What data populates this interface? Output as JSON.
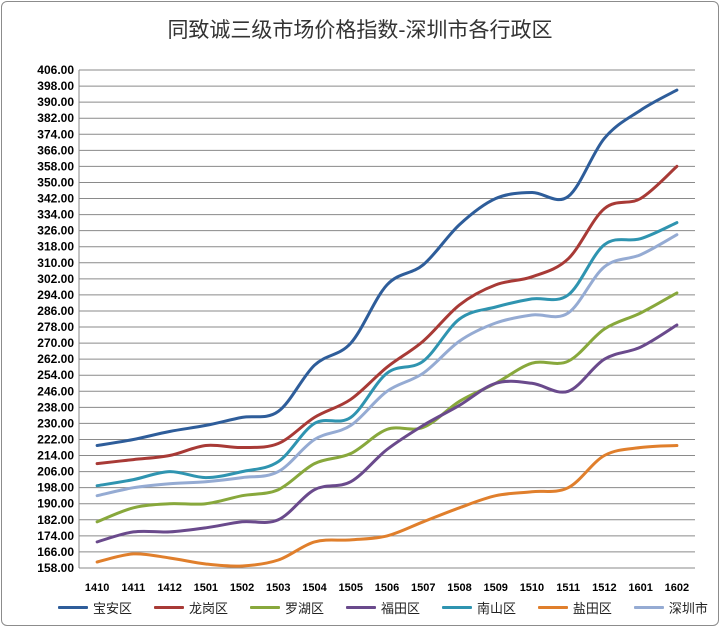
{
  "chart_data": {
    "type": "line",
    "title": "同致诚三级市场价格指数-深圳市各行政区",
    "xlabel": "",
    "ylabel": "",
    "ylim": [
      158.0,
      406.0
    ],
    "yticks": [
      "406.00",
      "398.00",
      "390.00",
      "382.00",
      "374.00",
      "366.00",
      "358.00",
      "350.00",
      "342.00",
      "334.00",
      "326.00",
      "318.00",
      "310.00",
      "302.00",
      "294.00",
      "286.00",
      "278.00",
      "270.00",
      "262.00",
      "254.00",
      "246.00",
      "238.00",
      "230.00",
      "222.00",
      "214.00",
      "206.00",
      "198.00",
      "190.00",
      "182.00",
      "174.00",
      "166.00",
      "158.00"
    ],
    "categories": [
      "1410",
      "1411",
      "1412",
      "1501",
      "1502",
      "1503",
      "1504",
      "1505",
      "1506",
      "1507",
      "1508",
      "1509",
      "1510",
      "1511",
      "1512",
      "1601",
      "1602"
    ],
    "grid": true,
    "legend_position": "bottom",
    "series": [
      {
        "name": "宝安区",
        "color": "#2e5d9a",
        "values": [
          219.0,
          222.0,
          226.0,
          229.0,
          233.0,
          236.0,
          259.0,
          270.0,
          299.0,
          309.0,
          329.0,
          342.0,
          345.0,
          343.0,
          372.0,
          386.0,
          396.0
        ]
      },
      {
        "name": "龙岗区",
        "color": "#a83a36",
        "values": [
          210.0,
          212.0,
          214.0,
          219.0,
          218.0,
          220.0,
          233.0,
          242.0,
          258.0,
          271.0,
          289.0,
          299.0,
          303.0,
          312.0,
          337.0,
          342.0,
          358.0
        ]
      },
      {
        "name": "罗湖区",
        "color": "#88a83c",
        "values": [
          181.0,
          188.0,
          190.0,
          190.0,
          194.0,
          197.0,
          210.0,
          215.0,
          227.0,
          228.0,
          241.0,
          250.0,
          260.0,
          261.0,
          277.0,
          285.0,
          295.0
        ]
      },
      {
        "name": "福田区",
        "color": "#6a4a8c",
        "values": [
          171.0,
          176.0,
          176.0,
          178.0,
          181.0,
          182.0,
          197.0,
          201.0,
          217.0,
          229.0,
          239.0,
          250.0,
          250.0,
          246.0,
          262.0,
          268.0,
          279.0
        ]
      },
      {
        "name": "南山区",
        "color": "#2f94b0",
        "values": [
          199.0,
          202.0,
          206.0,
          203.0,
          206.0,
          211.0,
          230.0,
          233.0,
          255.0,
          261.0,
          282.0,
          288.0,
          292.0,
          294.0,
          319.0,
          322.0,
          330.0
        ]
      },
      {
        "name": "盐田区",
        "color": "#e07f2c",
        "values": [
          161.0,
          165.0,
          163.0,
          160.0,
          159.0,
          162.0,
          171.0,
          172.0,
          174.0,
          181.0,
          188.0,
          194.0,
          196.0,
          198.0,
          214.0,
          218.0,
          219.0
        ]
      },
      {
        "name": "深圳市",
        "color": "#95abd3",
        "values": [
          194.0,
          198.0,
          200.0,
          201.0,
          203.0,
          206.0,
          222.0,
          229.0,
          246.0,
          255.0,
          271.0,
          280.0,
          284.0,
          285.0,
          308.0,
          314.0,
          324.0
        ]
      }
    ]
  }
}
